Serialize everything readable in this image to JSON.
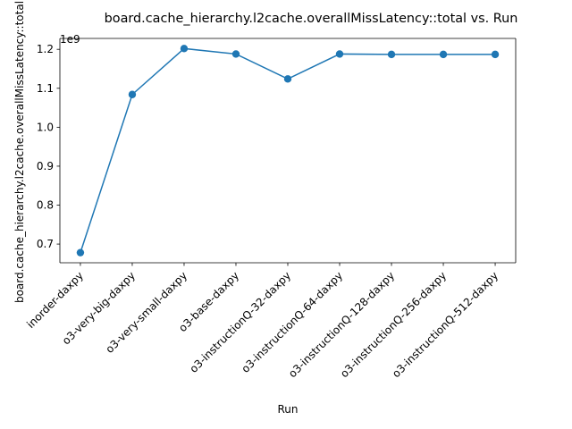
{
  "chart_data": {
    "type": "line",
    "title": "board.cache_hierarchy.l2cache.overallMissLatency::total vs. Run",
    "xlabel": "Run",
    "ylabel": "board.cache_hierarchy.l2cache.overallMissLatency::total",
    "y_offset_label": "1e9",
    "categories": [
      "inorder-daxpy",
      "o3-very-big-daxpy",
      "o3-very-small-daxpy",
      "o3-base-daxpy",
      "o3-instructionQ-32-daxpy",
      "o3-instructionQ-64-daxpy",
      "o3-instructionQ-128-daxpy",
      "o3-instructionQ-256-daxpy",
      "o3-instructionQ-512-daxpy"
    ],
    "series": [
      {
        "values": [
          0.678,
          1.084,
          1.202,
          1.188,
          1.124,
          1.188,
          1.187,
          1.187,
          1.187
        ]
      }
    ],
    "yticks": [
      0.7,
      0.8,
      0.9,
      1.0,
      1.1,
      1.2
    ],
    "ytick_labels": [
      "0.7",
      "0.8",
      "0.9",
      "1.0",
      "1.1",
      "1.2"
    ],
    "ylim": [
      0.652,
      1.228
    ],
    "color": "#1f77b4",
    "grid": false,
    "legend": false
  }
}
